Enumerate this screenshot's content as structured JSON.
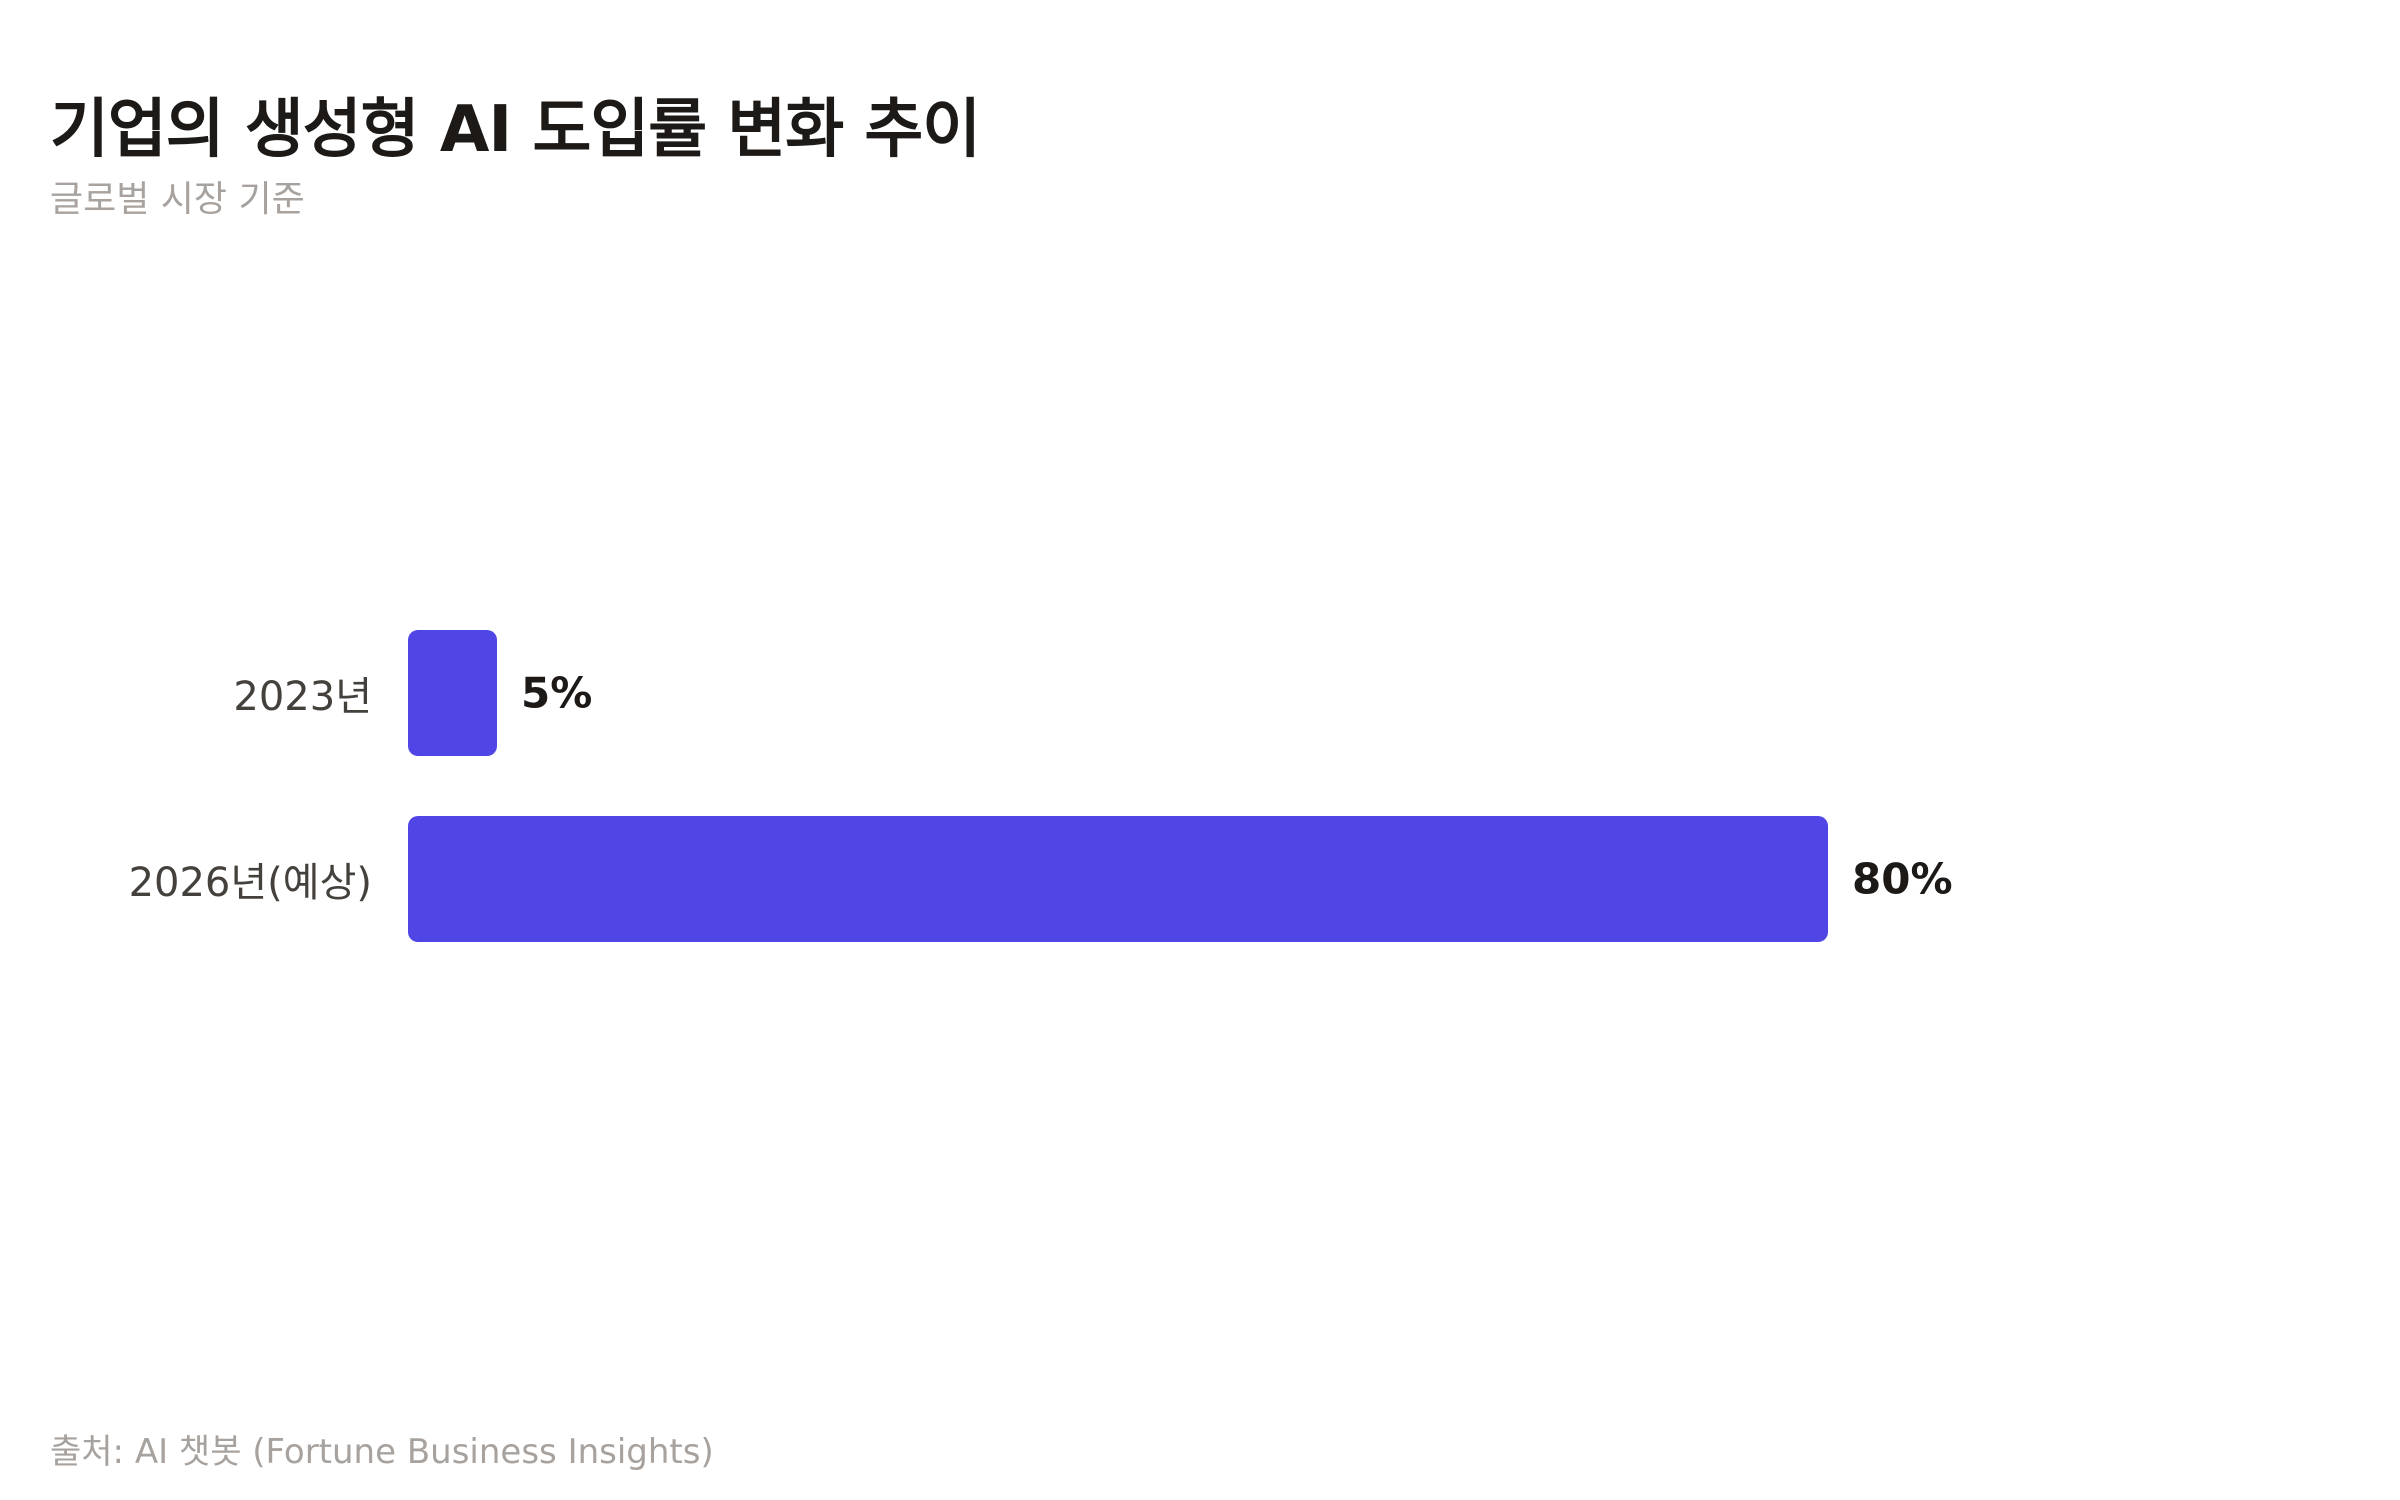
{
  "header": {
    "title": "기업의 생성형 AI 도입률 변화 추이",
    "subtitle": "글로벌 시장 기준"
  },
  "footer": {
    "source": "출처: AI 챗봇 (Fortune Business Insights)"
  },
  "colors": {
    "bar": "#4f46e5",
    "title": "#1c1917",
    "muted": "#a8a29e",
    "axis_label": "#44403c"
  },
  "chart_data": {
    "type": "bar",
    "orientation": "horizontal",
    "title": "기업의 생성형 AI 도입률 변화 추이",
    "subtitle": "글로벌 시장 기준",
    "categories": [
      "2023년",
      "2026년(예상)"
    ],
    "values": [
      5,
      80
    ],
    "value_labels": [
      "5%",
      "80%"
    ],
    "unit": "%",
    "xlabel": "",
    "ylabel": "",
    "xlim": [
      0,
      100
    ],
    "grid": false,
    "legend": "none",
    "source": "출처: AI 챗봇 (Fortune Business Insights)"
  },
  "rows": [
    {
      "label": "2023년",
      "value_label": "5%"
    },
    {
      "label": "2026년(예상)",
      "value_label": "80%"
    }
  ]
}
